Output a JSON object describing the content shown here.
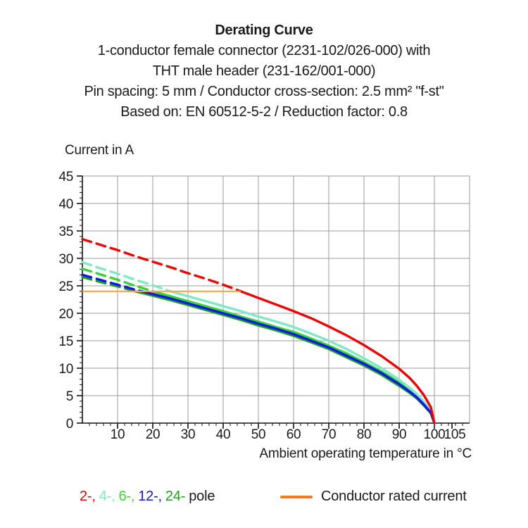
{
  "header": {
    "title": "Derating Curve",
    "lines": [
      "1-conductor female connector (2231-102/026-000) with",
      "THT male header (231-162/001-000)",
      "Pin spacing: 5 mm / Conductor cross-section: 2.5 mm² \"f-st\"",
      "Based on: EN 60512-5-2 / Reduction factor: 0.8"
    ]
  },
  "legend": {
    "pole_items": [
      {
        "label": "2-,",
        "color": "#f40000"
      },
      {
        "label": "4-,",
        "color": "#7fe8c4"
      },
      {
        "label": "6-,",
        "color": "#32d732"
      },
      {
        "label": "12-,",
        "color": "#1414f0"
      },
      {
        "label": "24-",
        "color": "#1da11d"
      }
    ],
    "pole_suffix": "pole",
    "rated_label": "Conductor rated current",
    "rated_swatch_color": "#f4791f"
  },
  "chart_data": {
    "type": "line",
    "title": "Derating Curve",
    "xlabel": "Ambient operating temperature in °C",
    "ylabel": "Current in A",
    "xlim": [
      0,
      110
    ],
    "ylim": [
      0,
      45
    ],
    "x_ticks": [
      10,
      20,
      30,
      40,
      50,
      60,
      70,
      80,
      90,
      100,
      105
    ],
    "x_minor_step": 2,
    "y_ticks": [
      0,
      5,
      10,
      15,
      20,
      25,
      30,
      35,
      40,
      45
    ],
    "y_minor_step": 1,
    "grid": true,
    "grid_color": "#9b9b9b",
    "axis_color": "#111111",
    "legend_position": "bottom",
    "rated_current_A": 24,
    "series": [
      {
        "name": "24-pole",
        "color": "#1da11d",
        "dash_until_x": 15,
        "role": "pole",
        "points": [
          [
            0,
            26.6
          ],
          [
            5,
            25.7
          ],
          [
            10,
            24.9
          ],
          [
            15,
            24
          ],
          [
            20,
            23.2
          ],
          [
            25,
            22.4
          ],
          [
            30,
            21.5
          ],
          [
            35,
            20.6
          ],
          [
            40,
            19.7
          ],
          [
            45,
            18.8
          ],
          [
            50,
            17.8
          ],
          [
            55,
            16.9
          ],
          [
            60,
            15.9
          ],
          [
            65,
            14.7
          ],
          [
            70,
            13.5
          ],
          [
            75,
            12
          ],
          [
            80,
            10.5
          ],
          [
            85,
            8.8
          ],
          [
            90,
            6.8
          ],
          [
            93,
            5.5
          ],
          [
            95,
            4.5
          ],
          [
            97,
            3.2
          ],
          [
            99,
            1.8
          ],
          [
            100,
            0
          ]
        ]
      },
      {
        "name": "6-pole",
        "color": "#32d732",
        "dash_until_x": 20,
        "role": "pole",
        "points": [
          [
            0,
            28.1
          ],
          [
            5,
            27.1
          ],
          [
            10,
            26.1
          ],
          [
            15,
            25
          ],
          [
            20,
            24
          ],
          [
            25,
            23.1
          ],
          [
            30,
            22.2
          ],
          [
            35,
            21.3
          ],
          [
            40,
            20.4
          ],
          [
            45,
            19.4
          ],
          [
            50,
            18.5
          ],
          [
            55,
            17.5
          ],
          [
            60,
            16.6
          ],
          [
            65,
            15.4
          ],
          [
            70,
            14.1
          ],
          [
            75,
            12.7
          ],
          [
            80,
            11.1
          ],
          [
            85,
            9.4
          ],
          [
            90,
            7.4
          ],
          [
            93,
            6
          ],
          [
            95,
            4.9
          ],
          [
            97,
            3.6
          ],
          [
            99,
            2
          ],
          [
            100,
            0
          ]
        ]
      },
      {
        "name": "4-pole",
        "color": "#7fe8c4",
        "dash_until_x": 25,
        "role": "pole",
        "points": [
          [
            0,
            29.3
          ],
          [
            5,
            28.2
          ],
          [
            10,
            27.2
          ],
          [
            15,
            26.1
          ],
          [
            20,
            25.1
          ],
          [
            25,
            24
          ],
          [
            30,
            23.1
          ],
          [
            35,
            22.2
          ],
          [
            40,
            21.3
          ],
          [
            45,
            20.4
          ],
          [
            50,
            19.4
          ],
          [
            55,
            18.5
          ],
          [
            60,
            17.5
          ],
          [
            65,
            16.3
          ],
          [
            70,
            15
          ],
          [
            75,
            13.5
          ],
          [
            80,
            11.8
          ],
          [
            85,
            10
          ],
          [
            90,
            7.9
          ],
          [
            93,
            6.4
          ],
          [
            95,
            5.3
          ],
          [
            97,
            3.9
          ],
          [
            99,
            2.2
          ],
          [
            100,
            0
          ]
        ]
      },
      {
        "name": "12-pole",
        "color": "#1414f0",
        "dash_until_x": 17,
        "role": "pole",
        "points": [
          [
            0,
            27
          ],
          [
            5,
            26.1
          ],
          [
            10,
            25.2
          ],
          [
            15,
            24.3
          ],
          [
            17,
            24
          ],
          [
            20,
            23.5
          ],
          [
            25,
            22.7
          ],
          [
            30,
            21.8
          ],
          [
            35,
            20.9
          ],
          [
            40,
            20
          ],
          [
            45,
            19.1
          ],
          [
            50,
            18.1
          ],
          [
            55,
            17.2
          ],
          [
            60,
            16.2
          ],
          [
            65,
            15
          ],
          [
            70,
            13.8
          ],
          [
            75,
            12.3
          ],
          [
            80,
            10.8
          ],
          [
            85,
            9.1
          ],
          [
            90,
            7.1
          ],
          [
            93,
            5.7
          ],
          [
            95,
            4.7
          ],
          [
            97,
            3.4
          ],
          [
            99,
            1.9
          ],
          [
            100,
            0
          ]
        ]
      },
      {
        "name": "2-pole",
        "color": "#f40000",
        "dash_until_x": 45,
        "role": "pole",
        "points": [
          [
            0,
            33.5
          ],
          [
            5,
            32.5
          ],
          [
            10,
            31.5
          ],
          [
            15,
            30.4
          ],
          [
            20,
            29.4
          ],
          [
            25,
            28.4
          ],
          [
            30,
            27.3
          ],
          [
            35,
            26.3
          ],
          [
            40,
            25.2
          ],
          [
            45,
            24
          ],
          [
            50,
            22.8
          ],
          [
            55,
            21.6
          ],
          [
            60,
            20.4
          ],
          [
            65,
            19.1
          ],
          [
            70,
            17.6
          ],
          [
            75,
            16
          ],
          [
            80,
            14.2
          ],
          [
            85,
            12.2
          ],
          [
            90,
            9.9
          ],
          [
            93,
            8.2
          ],
          [
            95,
            6.8
          ],
          [
            97,
            5.1
          ],
          [
            99,
            2.9
          ],
          [
            100,
            0
          ]
        ]
      },
      {
        "name": "Conductor rated current",
        "color": "#ffa64d",
        "dash_until_x": null,
        "role": "rated",
        "points": [
          [
            0,
            24
          ],
          [
            45,
            24
          ]
        ]
      }
    ]
  }
}
